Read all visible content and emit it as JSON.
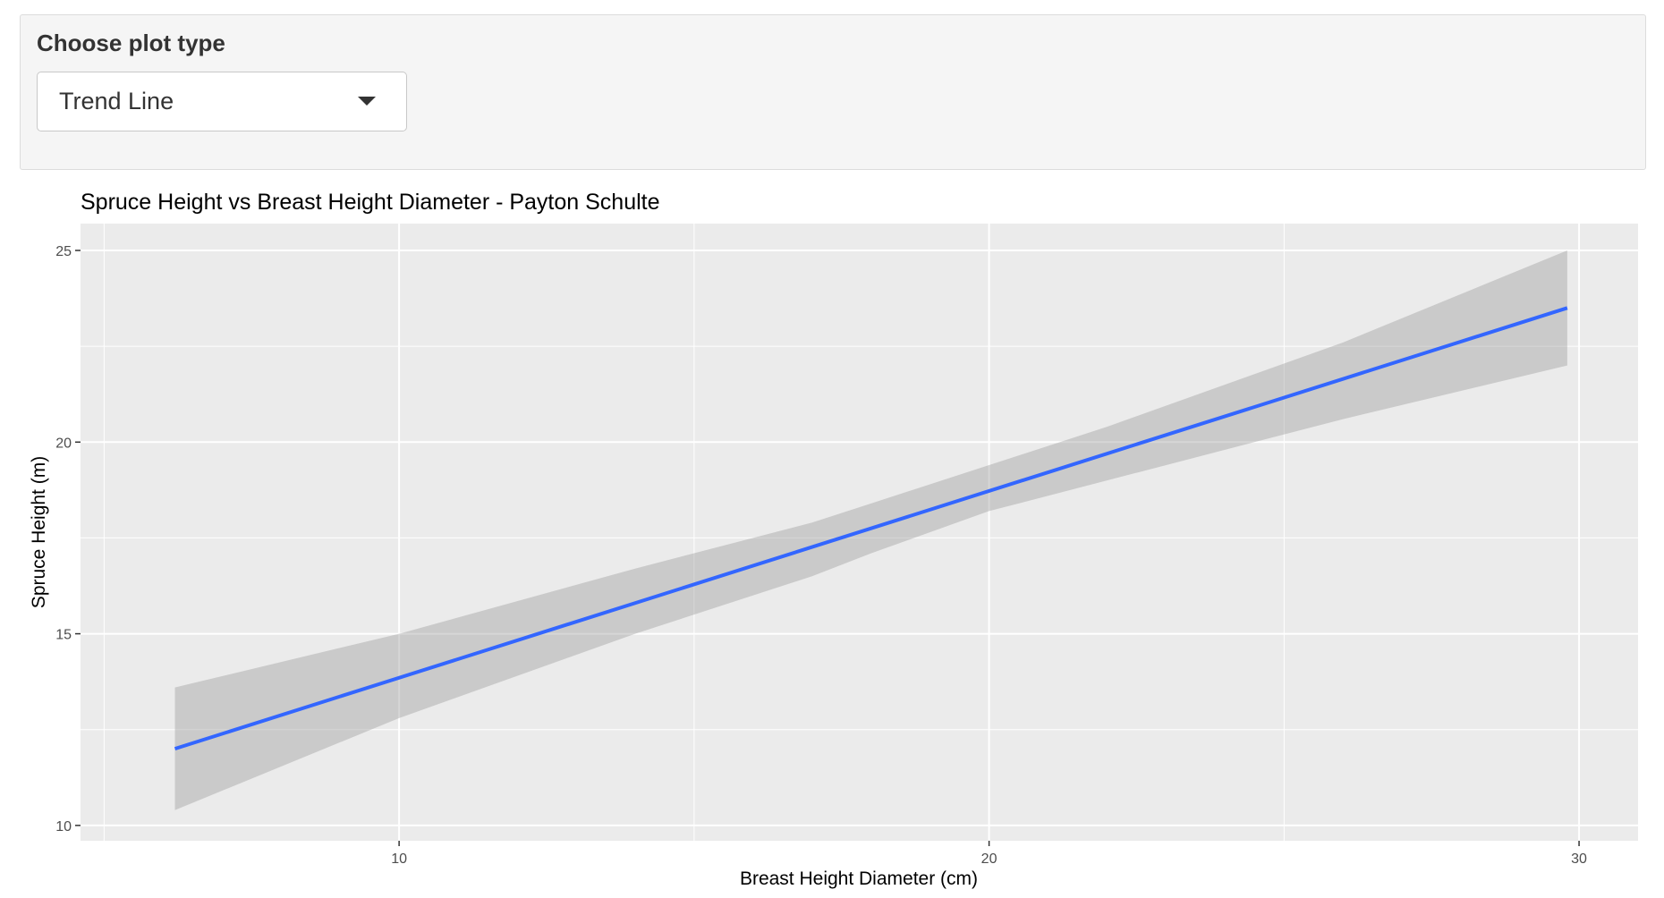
{
  "controls": {
    "label": "Choose plot type",
    "select_value": "Trend Line"
  },
  "chart_data": {
    "type": "line",
    "title": "Spruce Height vs Breast Height Diameter - Payton Schulte",
    "xlabel": "Breast Height Diameter (cm)",
    "ylabel": "Spruce Height (m)",
    "xlim": [
      4.6,
      31.0
    ],
    "ylim": [
      9.6,
      25.7
    ],
    "x_ticks": [
      10,
      20,
      30
    ],
    "y_ticks": [
      10,
      15,
      20,
      25
    ],
    "grid": true,
    "series": [
      {
        "x": [
          6.2,
          29.8
        ],
        "values": [
          12.0,
          23.5
        ],
        "color": "#3366ff",
        "ribbon": {
          "x": [
            6.2,
            10.0,
            14.0,
            17.0,
            18.0,
            20.0,
            22.0,
            26.0,
            29.8
          ],
          "lower": [
            10.4,
            12.8,
            15.0,
            16.5,
            17.1,
            18.2,
            19.0,
            20.6,
            22.0
          ],
          "upper": [
            13.6,
            15.0,
            16.7,
            17.9,
            18.4,
            19.4,
            20.4,
            22.6,
            25.0
          ],
          "color": "#999999"
        }
      }
    ]
  }
}
